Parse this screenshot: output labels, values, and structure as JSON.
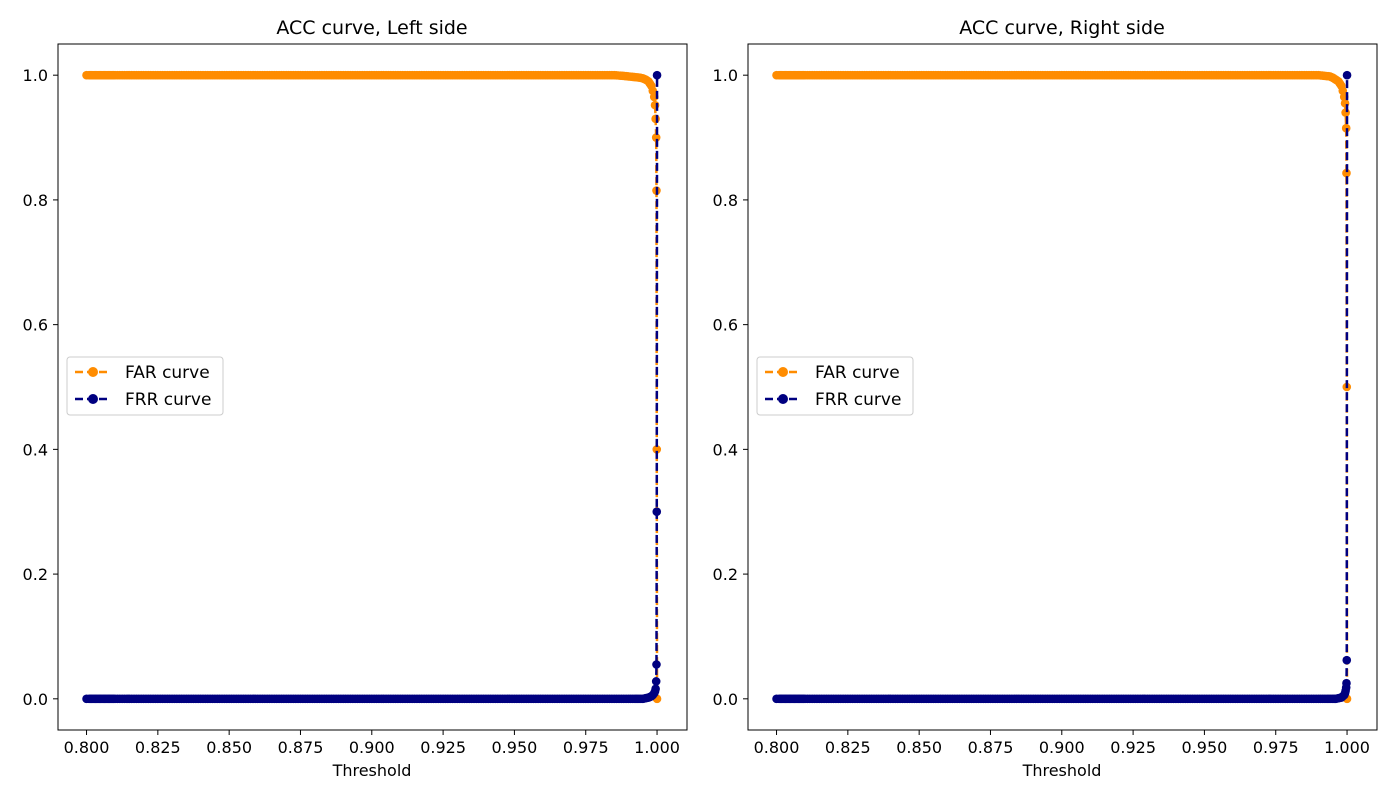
{
  "chart_data": [
    {
      "type": "line",
      "title": "ACC curve, Left side",
      "xlabel": "Threshold",
      "ylabel": "",
      "xlim": [
        0.79,
        1.0105
      ],
      "ylim": [
        -0.05,
        1.05
      ],
      "xticks": [
        "0.800",
        "0.825",
        "0.850",
        "0.875",
        "0.900",
        "0.925",
        "0.950",
        "0.975",
        "1.000"
      ],
      "yticks": [
        "0.0",
        "0.2",
        "0.4",
        "0.6",
        "0.8",
        "1.0"
      ],
      "grid": false,
      "legend_position": "center-left",
      "series": [
        {
          "name": "FAR curve",
          "color": "#ff8c00",
          "line_style": "dashed",
          "marker": "circle",
          "x": [
            0.8,
            0.8009,
            0.8018,
            0.8027,
            0.8036,
            0.8045,
            0.8054,
            0.8063,
            0.8072,
            0.8081,
            0.809,
            0.81,
            0.82,
            0.83,
            0.84,
            0.85,
            0.86,
            0.87,
            0.88,
            0.89,
            0.9,
            0.91,
            0.92,
            0.93,
            0.94,
            0.95,
            0.96,
            0.97,
            0.98,
            0.985,
            0.988,
            0.99,
            0.992,
            0.994,
            0.995,
            0.996,
            0.997,
            0.998,
            0.9985,
            0.999,
            0.9993,
            0.9995,
            0.9997,
            0.9998,
            0.9999,
            1.0
          ],
          "y": [
            1.0,
            1.0,
            1.0,
            1.0,
            1.0,
            1.0,
            1.0,
            1.0,
            1.0,
            1.0,
            1.0,
            1.0,
            1.0,
            1.0,
            1.0,
            1.0,
            1.0,
            1.0,
            1.0,
            1.0,
            1.0,
            1.0,
            1.0,
            1.0,
            1.0,
            1.0,
            1.0,
            1.0,
            1.0,
            1.0,
            0.999,
            0.998,
            0.997,
            0.996,
            0.995,
            0.993,
            0.99,
            0.983,
            0.975,
            0.965,
            0.952,
            0.93,
            0.9,
            0.815,
            0.4,
            0.0
          ]
        },
        {
          "name": "FRR curve",
          "color": "#000080",
          "line_style": "dashed",
          "marker": "circle",
          "x": [
            0.8,
            0.8009,
            0.8018,
            0.8027,
            0.8036,
            0.8045,
            0.8054,
            0.8063,
            0.8072,
            0.8081,
            0.809,
            0.81,
            0.82,
            0.83,
            0.84,
            0.85,
            0.86,
            0.87,
            0.88,
            0.89,
            0.9,
            0.91,
            0.92,
            0.93,
            0.94,
            0.95,
            0.96,
            0.97,
            0.98,
            0.985,
            0.99,
            0.993,
            0.995,
            0.996,
            0.997,
            0.998,
            0.9985,
            0.999,
            0.9993,
            0.9995,
            0.9997,
            0.9998,
            0.9999,
            1.0
          ],
          "y": [
            0.0,
            0.0,
            0.0,
            0.0,
            0.0,
            0.0,
            0.0,
            0.0,
            0.0,
            0.0,
            0.0,
            0.0,
            0.0,
            0.0,
            0.0,
            0.0,
            0.0,
            0.0,
            0.0,
            0.0,
            0.0,
            0.0,
            0.0,
            0.0,
            0.0,
            0.0,
            0.0,
            0.0,
            0.0,
            0.0,
            0.0,
            0.0,
            0.0,
            0.001,
            0.002,
            0.004,
            0.006,
            0.009,
            0.012,
            0.016,
            0.028,
            0.055,
            0.3,
            1.0
          ]
        }
      ]
    },
    {
      "type": "line",
      "title": "ACC curve, Right side",
      "xlabel": "Threshold",
      "ylabel": "",
      "xlim": [
        0.79,
        1.0105
      ],
      "ylim": [
        -0.05,
        1.05
      ],
      "xticks": [
        "0.800",
        "0.825",
        "0.850",
        "0.875",
        "0.900",
        "0.925",
        "0.950",
        "0.975",
        "1.000"
      ],
      "yticks": [
        "0.0",
        "0.2",
        "0.4",
        "0.6",
        "0.8",
        "1.0"
      ],
      "grid": false,
      "legend_position": "center-left",
      "series": [
        {
          "name": "FAR curve",
          "color": "#ff8c00",
          "line_style": "dashed",
          "marker": "circle",
          "x": [
            0.8,
            0.8009,
            0.8018,
            0.8027,
            0.8036,
            0.8045,
            0.8054,
            0.8063,
            0.8072,
            0.8081,
            0.809,
            0.81,
            0.82,
            0.83,
            0.84,
            0.85,
            0.86,
            0.87,
            0.88,
            0.89,
            0.9,
            0.91,
            0.92,
            0.93,
            0.94,
            0.95,
            0.96,
            0.97,
            0.98,
            0.985,
            0.99,
            0.992,
            0.994,
            0.995,
            0.996,
            0.997,
            0.998,
            0.9985,
            0.999,
            0.9993,
            0.9995,
            0.9997,
            0.9998,
            0.9999,
            1.0
          ],
          "y": [
            1.0,
            1.0,
            1.0,
            1.0,
            1.0,
            1.0,
            1.0,
            1.0,
            1.0,
            1.0,
            1.0,
            1.0,
            1.0,
            1.0,
            1.0,
            1.0,
            1.0,
            1.0,
            1.0,
            1.0,
            1.0,
            1.0,
            1.0,
            1.0,
            1.0,
            1.0,
            1.0,
            1.0,
            1.0,
            1.0,
            1.0,
            0.999,
            0.998,
            0.996,
            0.993,
            0.99,
            0.983,
            0.975,
            0.965,
            0.955,
            0.94,
            0.915,
            0.843,
            0.5,
            0.0
          ]
        },
        {
          "name": "FRR curve",
          "color": "#000080",
          "line_style": "dashed",
          "marker": "circle",
          "x": [
            0.8,
            0.8009,
            0.8018,
            0.8027,
            0.8036,
            0.8045,
            0.8054,
            0.8063,
            0.8072,
            0.8081,
            0.809,
            0.81,
            0.82,
            0.83,
            0.84,
            0.85,
            0.86,
            0.87,
            0.88,
            0.89,
            0.9,
            0.91,
            0.92,
            0.93,
            0.94,
            0.95,
            0.96,
            0.97,
            0.98,
            0.985,
            0.99,
            0.993,
            0.995,
            0.996,
            0.997,
            0.998,
            0.9985,
            0.999,
            0.9993,
            0.9995,
            0.9997,
            0.9998,
            0.9999,
            1.0
          ],
          "y": [
            0.0,
            0.0,
            0.0,
            0.0,
            0.0,
            0.0,
            0.0,
            0.0,
            0.0,
            0.0,
            0.0,
            0.0,
            0.0,
            0.0,
            0.0,
            0.0,
            0.0,
            0.0,
            0.0,
            0.0,
            0.0,
            0.0,
            0.0,
            0.0,
            0.0,
            0.0,
            0.0,
            0.0,
            0.0,
            0.0,
            0.0,
            0.0,
            0.0,
            0.0,
            0.001,
            0.002,
            0.004,
            0.006,
            0.009,
            0.013,
            0.018,
            0.025,
            0.062,
            1.0
          ]
        }
      ]
    }
  ]
}
